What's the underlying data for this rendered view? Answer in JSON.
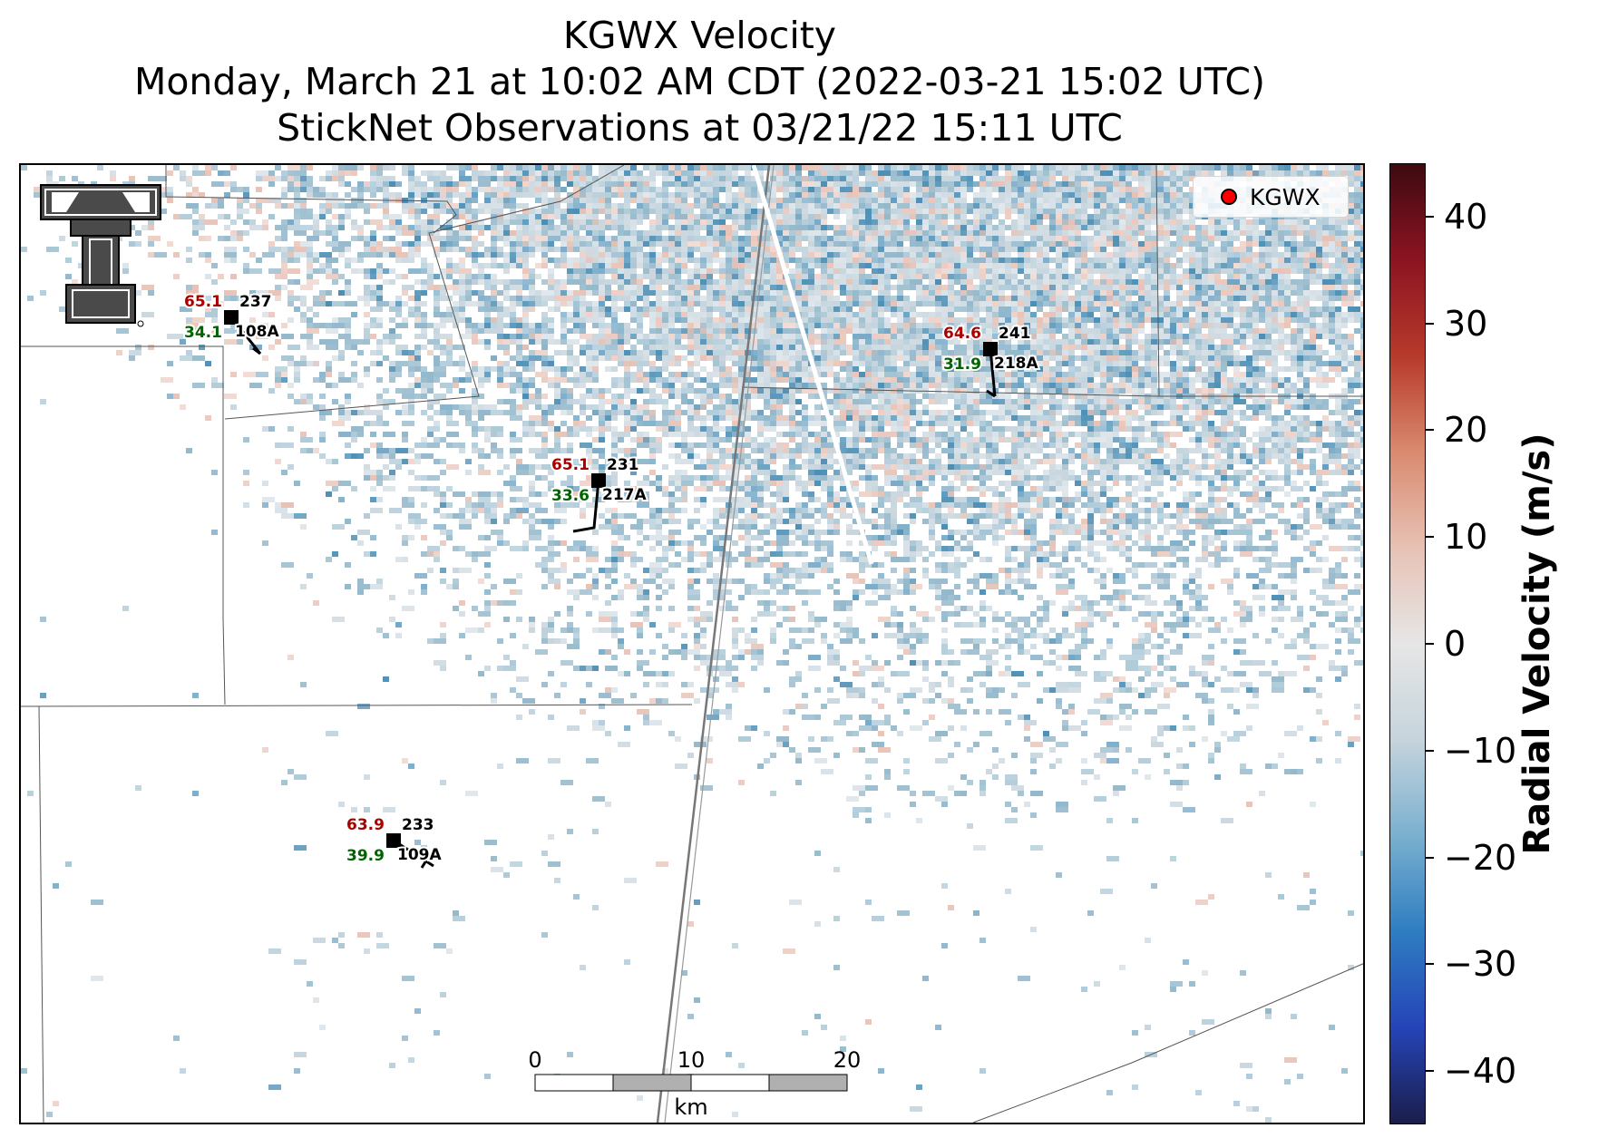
{
  "title": {
    "line1": "KGWX Velocity",
    "line2": "Monday, March 21 at 10:02 AM CDT (2022-03-21 15:02 UTC)",
    "line3": "StickNet Observations at 03/21/22 15:11 UTC"
  },
  "legend": {
    "label": "KGWX",
    "marker_color": "#ff0000"
  },
  "logo": {
    "name": "texas-tech-double-t",
    "colors": [
      "#444444",
      "#ffffff",
      "#000000"
    ]
  },
  "stations": [
    {
      "temp": "65.1",
      "dewpoint": "34.1",
      "direction": "237",
      "id": "108A"
    },
    {
      "temp": "65.1",
      "dewpoint": "33.6",
      "direction": "231",
      "id": "217A"
    },
    {
      "temp": "64.6",
      "dewpoint": "31.9",
      "direction": "241",
      "id": "218A"
    },
    {
      "temp": "63.9",
      "dewpoint": "39.9",
      "direction": "233",
      "id": "109A"
    }
  ],
  "scale_bar": {
    "ticks": [
      "0",
      "10",
      "20"
    ],
    "unit": "km"
  },
  "colorbar": {
    "label": "Radial Velocity (m/s)",
    "range": [
      -45,
      45
    ],
    "ticks": [
      "40",
      "30",
      "20",
      "10",
      "0",
      "−10",
      "−20",
      "−30",
      "−40"
    ],
    "colors": [
      "#1b1e4a",
      "#2544b8",
      "#2e7dc1",
      "#7ab0cf",
      "#c6d4dd",
      "#e6e6e6",
      "#e7c2b5",
      "#d98a6f",
      "#b73a2b",
      "#8c1422",
      "#3e0a10"
    ]
  },
  "colors": {
    "temp": "#aa0000",
    "dewpoint": "#006400",
    "text": "#000000",
    "velocity_light": "#c9d6de",
    "velocity_mid": "#93b8cb",
    "velocity_dark": "#4c8fb6",
    "velocity_pos": "#e8c2b6"
  }
}
